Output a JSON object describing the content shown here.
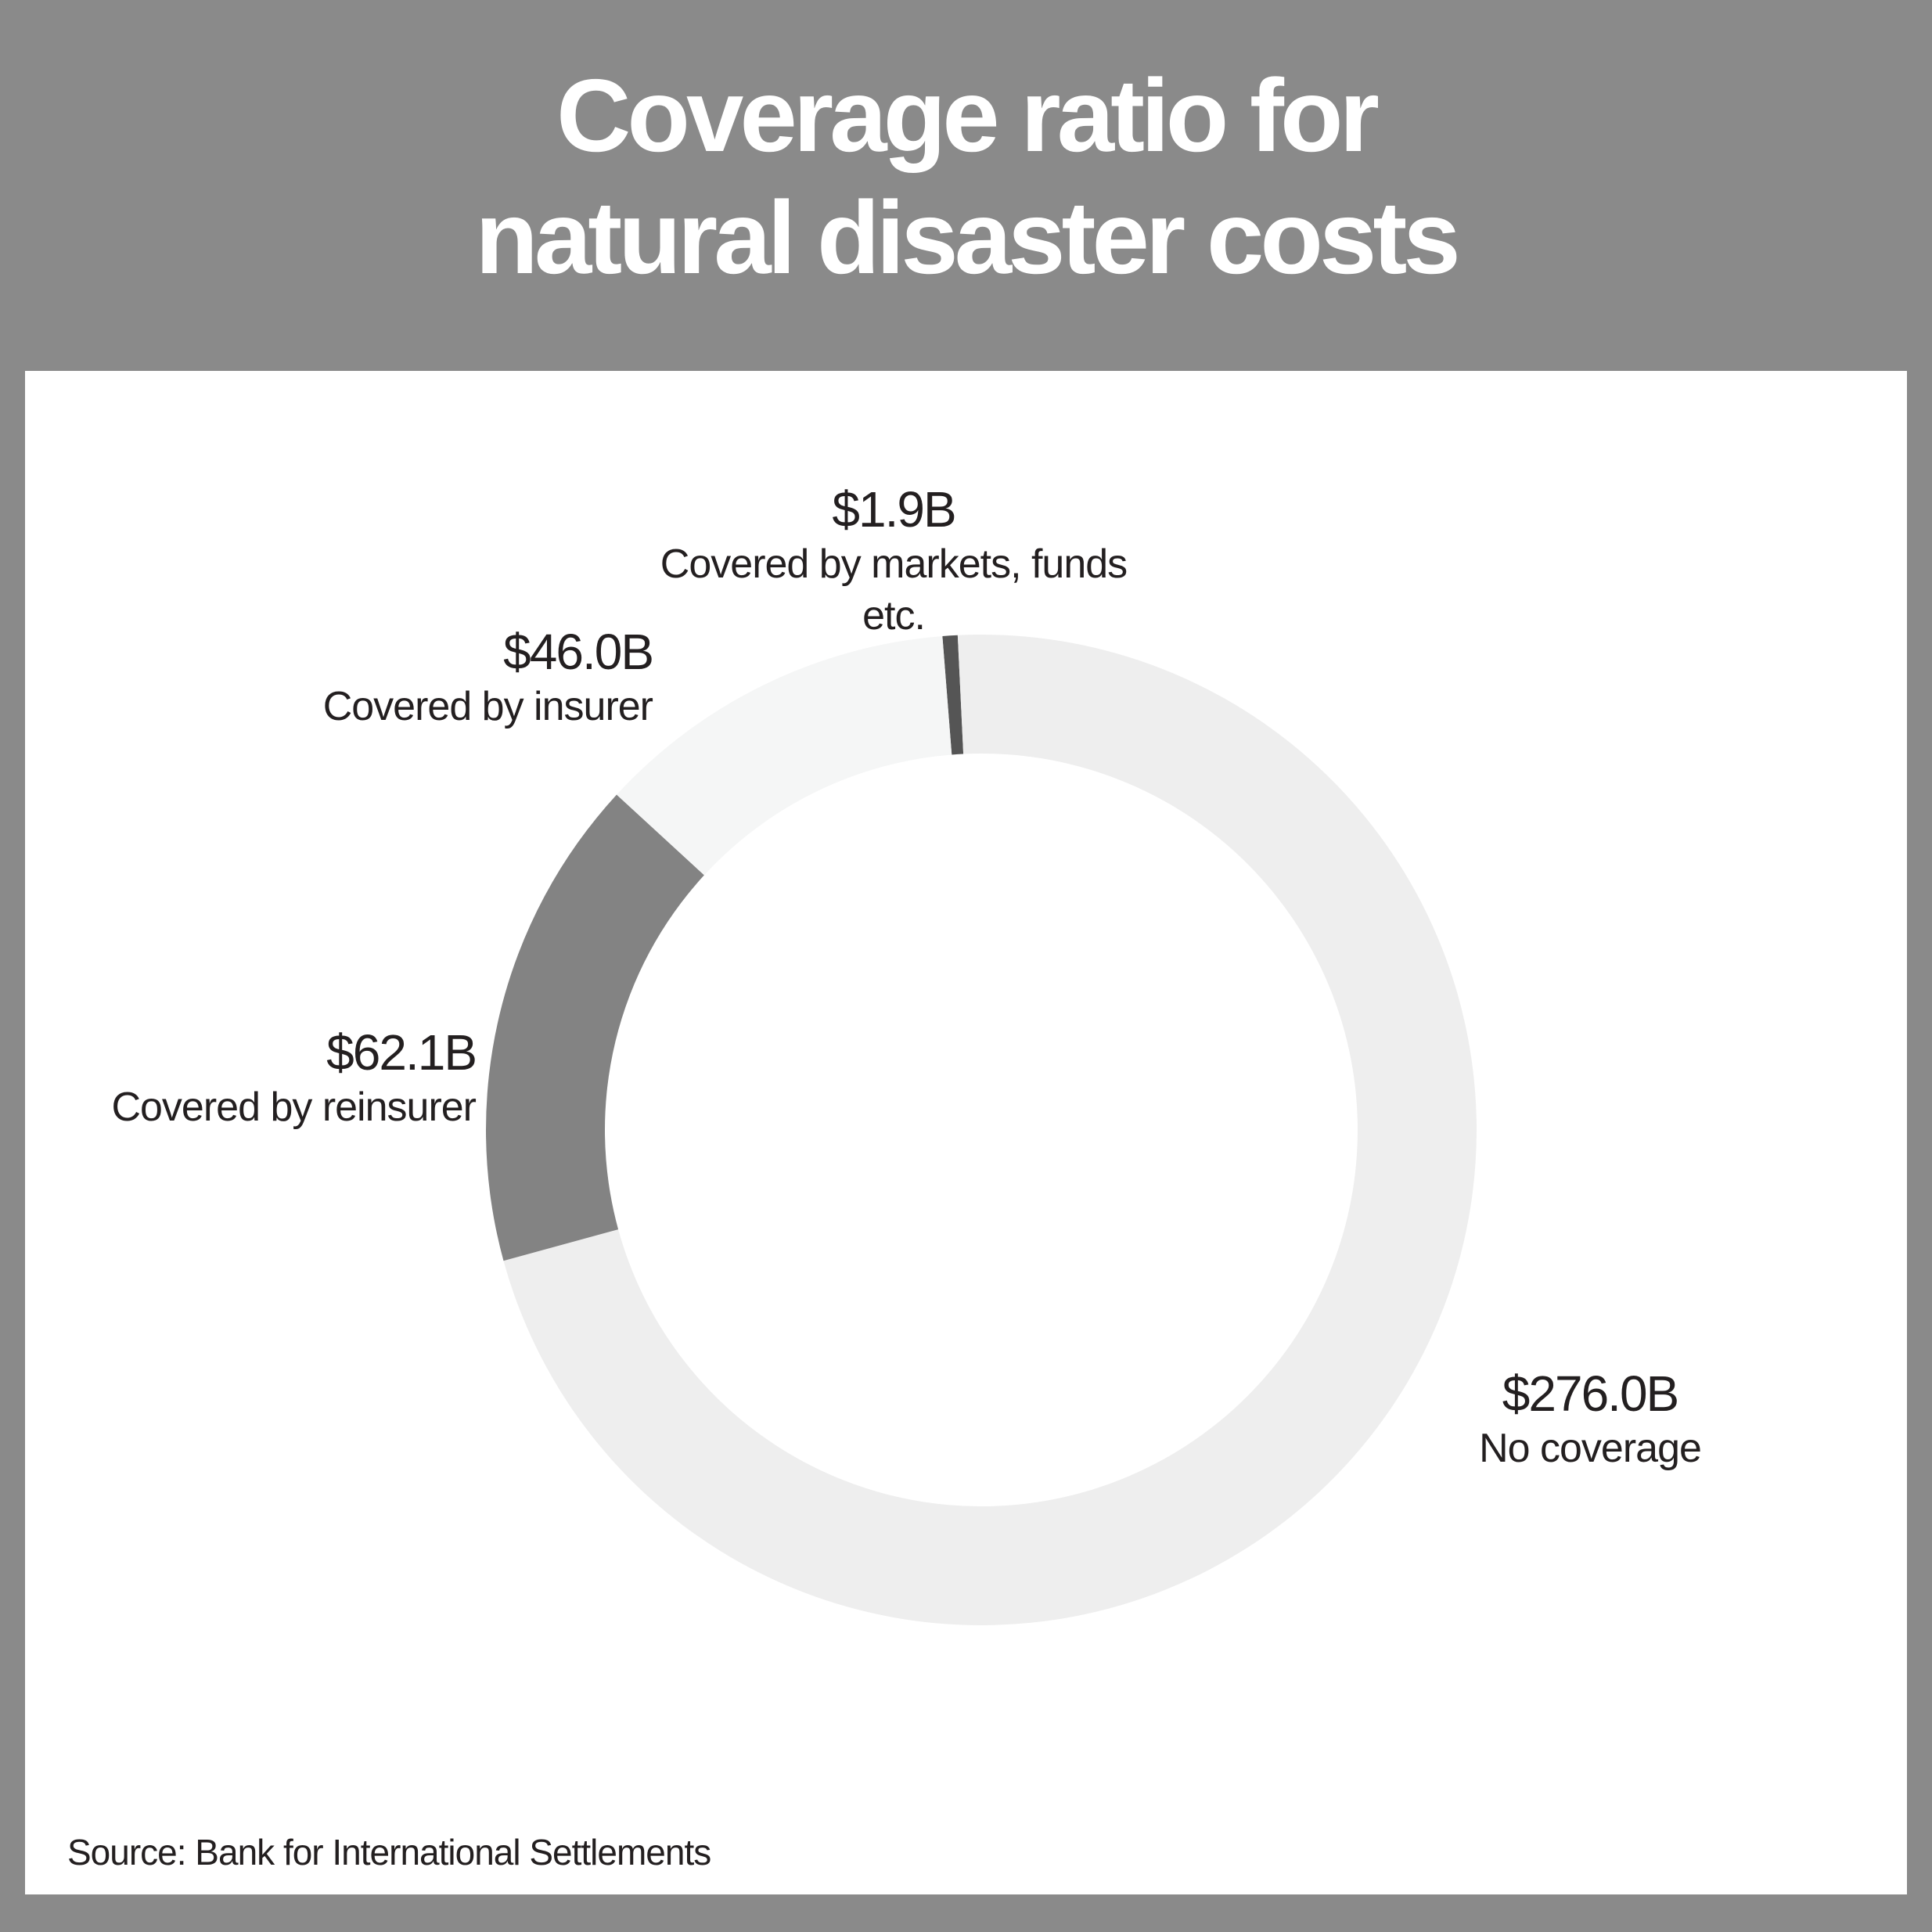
{
  "title_lines": [
    "Coverage ratio for",
    "natural disaster costs"
  ],
  "source": "Source: Bank for International Settlements",
  "colors": {
    "background": "#8a8a8a",
    "panel": "#ffffff",
    "text": "#231f20",
    "segments": [
      "#555555",
      "#eeeeee",
      "#838383",
      "#f5f6f6"
    ]
  },
  "chart_data": {
    "type": "pie",
    "donut": true,
    "series": [
      {
        "values": [
          1.9,
          276.0,
          62.1,
          46.0
        ],
        "value_labels": [
          "$1.9B",
          "$276.0B",
          "$62.1B",
          "$46.0B"
        ],
        "categories": [
          "Covered by markets, funds etc.",
          "No coverage",
          "Covered by reinsurer",
          "Covered by insurer"
        ]
      }
    ]
  }
}
